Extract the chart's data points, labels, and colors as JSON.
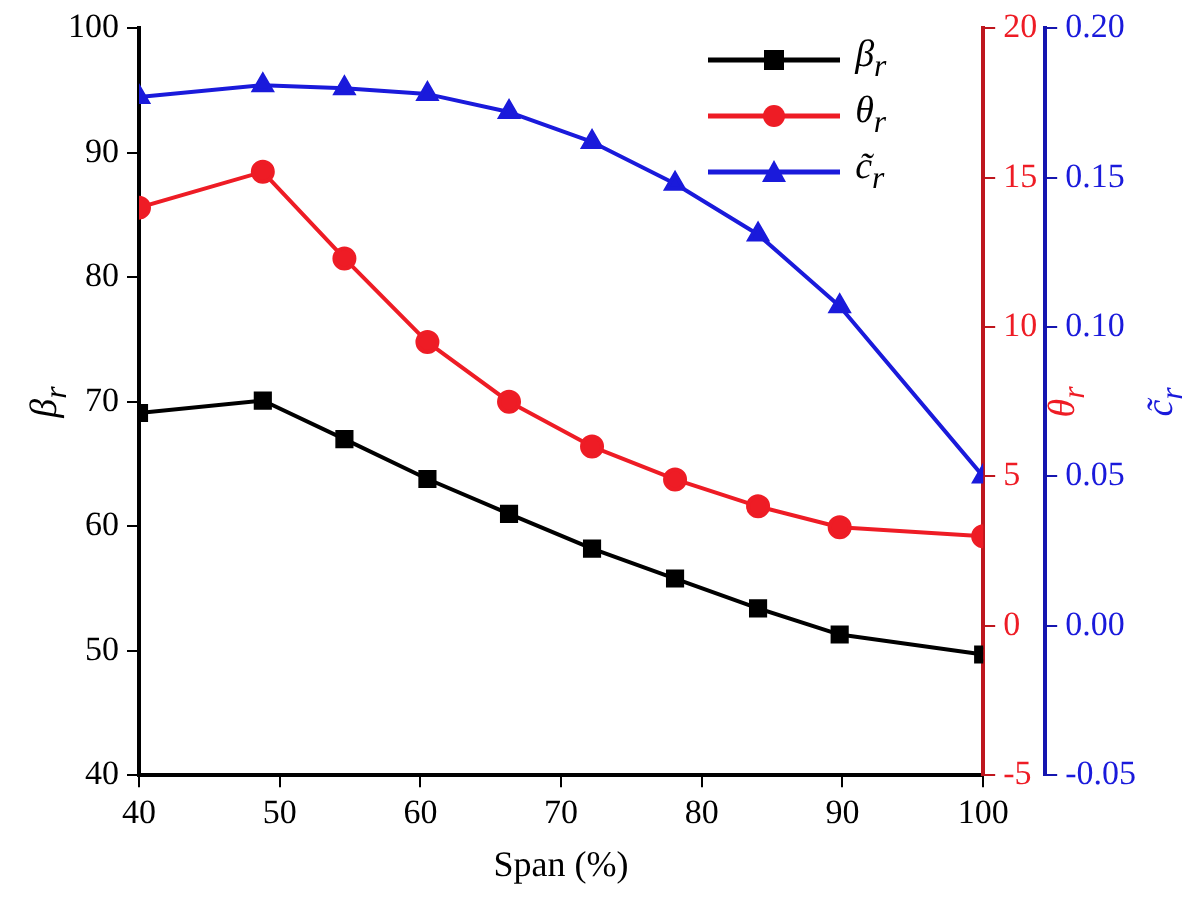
{
  "chart_data": {
    "type": "line",
    "xlabel": "Span (%)",
    "ylabel": "β$_{r}$",
    "y2label": "θ$_{r}$",
    "y3label": "c̃$_{r}$",
    "x": [
      40,
      48.8,
      54.6,
      60.5,
      66.3,
      72.2,
      78.1,
      84.0,
      89.8,
      100
    ],
    "xlim": [
      40,
      100
    ],
    "xticks": [
      40,
      50,
      60,
      70,
      80,
      90,
      100
    ],
    "ylim": [
      40,
      100
    ],
    "yticks": [
      40,
      50,
      60,
      70,
      80,
      90,
      100
    ],
    "y2lim": [
      -5,
      20
    ],
    "y2ticks": [
      -5,
      0,
      5,
      10,
      15,
      20
    ],
    "y3lim": [
      -0.05,
      0.2
    ],
    "y3ticks": [
      {
        "value": -0.05,
        "label": "-0.05"
      },
      {
        "value": 0,
        "label": "0.00"
      },
      {
        "value": 0.05,
        "label": "0.05"
      },
      {
        "value": 0.1,
        "label": "0.10"
      },
      {
        "value": 0.15,
        "label": "0.15"
      },
      {
        "value": 0.2,
        "label": "0.20"
      }
    ],
    "series": [
      {
        "name": "β$_{r}$",
        "color": "#000000",
        "marker": "square",
        "values": [
          69.1,
          70.1,
          67.0,
          63.8,
          61.0,
          58.2,
          55.8,
          53.4,
          51.3,
          49.7
        ]
      },
      {
        "name": "θ$_{r}$",
        "color": "#ee1c25",
        "marker": "circle",
        "axis": "y2",
        "values": [
          14.0,
          15.2,
          12.3,
          9.5,
          7.5,
          6.0,
          4.9,
          4.0,
          3.3,
          3.0
        ]
      },
      {
        "name": "c̃$_{r}$",
        "color": "#1a1adb",
        "marker": "triangle",
        "axis": "y3",
        "values": [
          0.177,
          0.181,
          0.18,
          0.178,
          0.172,
          0.162,
          0.148,
          0.131,
          0.107,
          0.05
        ]
      }
    ],
    "grid": false,
    "legend": "top right"
  }
}
